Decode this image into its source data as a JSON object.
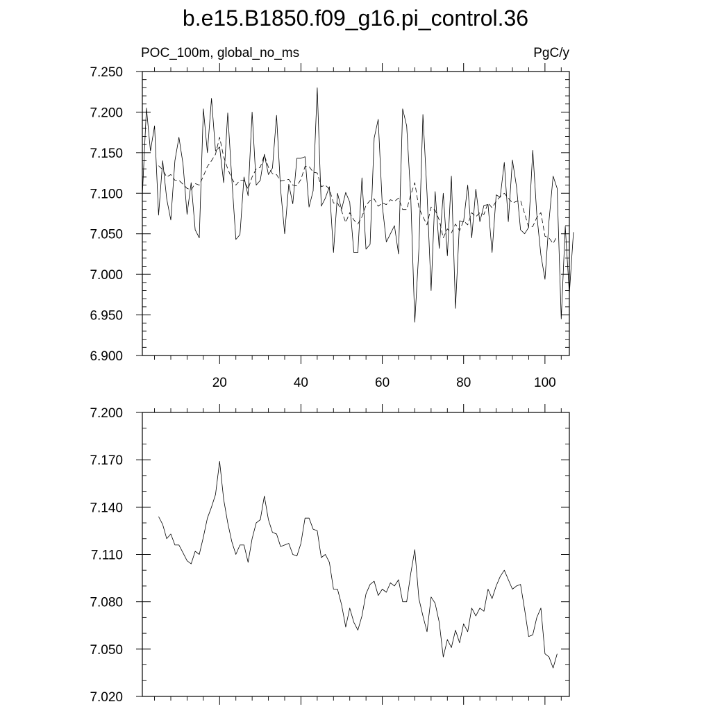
{
  "title": "b.e15.B1850.f09_g16.pi_control.36",
  "chart_data": [
    {
      "type": "line",
      "title": "b.e15.B1850.f09_g16.pi_control.36",
      "left_label": "POC_100m, global_no_ms",
      "right_label": "PgC/y",
      "xlim": [
        1,
        106
      ],
      "ylim": [
        6.9,
        7.25
      ],
      "x_ticks": [
        20,
        40,
        60,
        80,
        100
      ],
      "y_ticks": [
        "6.900",
        "6.950",
        "7.000",
        "7.050",
        "7.100",
        "7.150",
        "7.200",
        "7.250"
      ],
      "series": [
        {
          "style": "solid",
          "x_start": 1,
          "values": [
            7.097,
            7.205,
            7.152,
            7.183,
            7.073,
            7.14,
            7.093,
            7.067,
            7.14,
            7.169,
            7.136,
            7.074,
            7.113,
            7.055,
            7.045,
            7.204,
            7.15,
            7.217,
            7.152,
            7.157,
            7.113,
            7.199,
            7.117,
            7.043,
            7.049,
            7.12,
            7.097,
            7.2,
            7.11,
            7.116,
            7.148,
            7.123,
            7.131,
            7.196,
            7.105,
            7.05,
            7.111,
            7.087,
            7.143,
            7.143,
            7.145,
            7.083,
            7.103,
            7.23,
            7.084,
            7.094,
            7.108,
            7.027,
            7.1,
            7.08,
            7.101,
            7.089,
            7.027,
            7.027,
            7.119,
            7.031,
            7.037,
            7.168,
            7.191,
            7.085,
            7.04,
            7.05,
            7.06,
            7.025,
            7.204,
            7.183,
            7.095,
            6.941,
            7.031,
            7.197,
            7.1,
            6.98,
            7.102,
            7.032,
            7.1,
            7.023,
            7.121,
            6.958,
            7.066,
            7.065,
            7.11,
            7.045,
            7.105,
            7.065,
            7.085,
            7.086,
            7.027,
            7.098,
            7.095,
            7.138,
            7.065,
            7.141,
            7.108,
            7.055,
            7.05,
            7.058,
            7.153,
            7.074,
            7.024,
            6.994,
            7.066,
            7.121,
            7.106,
            6.945,
            7.059,
            6.976,
            7.052
          ]
        },
        {
          "style": "dashed",
          "x_start": 5,
          "values": [
            7.134,
            7.129,
            7.12,
            7.123,
            7.116,
            7.116,
            7.111,
            7.106,
            7.104,
            7.112,
            7.11,
            7.121,
            7.133,
            7.14,
            7.148,
            7.169,
            7.145,
            7.13,
            7.118,
            7.11,
            7.116,
            7.116,
            7.105,
            7.12,
            7.13,
            7.132,
            7.147,
            7.132,
            7.124,
            7.123,
            7.115,
            7.116,
            7.117,
            7.11,
            7.109,
            7.117,
            7.133,
            7.133,
            7.126,
            7.125,
            7.108,
            7.11,
            7.105,
            7.088,
            7.088,
            7.078,
            7.064,
            7.076,
            7.067,
            7.062,
            7.071,
            7.085,
            7.091,
            7.093,
            7.084,
            7.088,
            7.086,
            7.092,
            7.09,
            7.094,
            7.08,
            7.08,
            7.098,
            7.113,
            7.082,
            7.071,
            7.061,
            7.083,
            7.079,
            7.067,
            7.045,
            7.056,
            7.051,
            7.062,
            7.054,
            7.066,
            7.061,
            7.076,
            7.071,
            7.076,
            7.074,
            7.088,
            7.082,
            7.09,
            7.096,
            7.1,
            7.094,
            7.088,
            7.09,
            7.091,
            7.075,
            7.058,
            7.059,
            7.07,
            7.076,
            7.047,
            7.045,
            7.038,
            7.047
          ]
        }
      ]
    },
    {
      "type": "line",
      "xlim": [
        1,
        106
      ],
      "ylim": [
        7.02,
        7.2
      ],
      "x_ticks": [
        20,
        40,
        60,
        80,
        100
      ],
      "y_ticks": [
        "7.020",
        "7.050",
        "7.080",
        "7.110",
        "7.140",
        "7.170",
        "7.200"
      ],
      "series": [
        {
          "style": "solid",
          "x_start": 5,
          "values": [
            7.134,
            7.129,
            7.12,
            7.123,
            7.116,
            7.116,
            7.111,
            7.106,
            7.104,
            7.112,
            7.11,
            7.121,
            7.133,
            7.14,
            7.148,
            7.169,
            7.145,
            7.13,
            7.118,
            7.11,
            7.116,
            7.116,
            7.105,
            7.12,
            7.13,
            7.132,
            7.147,
            7.132,
            7.124,
            7.123,
            7.115,
            7.116,
            7.117,
            7.11,
            7.109,
            7.117,
            7.133,
            7.133,
            7.126,
            7.125,
            7.108,
            7.11,
            7.105,
            7.088,
            7.088,
            7.078,
            7.064,
            7.076,
            7.067,
            7.062,
            7.071,
            7.085,
            7.091,
            7.093,
            7.084,
            7.088,
            7.086,
            7.092,
            7.09,
            7.094,
            7.08,
            7.08,
            7.098,
            7.113,
            7.082,
            7.071,
            7.061,
            7.083,
            7.079,
            7.067,
            7.045,
            7.056,
            7.051,
            7.062,
            7.054,
            7.066,
            7.061,
            7.076,
            7.071,
            7.076,
            7.074,
            7.088,
            7.082,
            7.09,
            7.096,
            7.1,
            7.094,
            7.088,
            7.09,
            7.091,
            7.075,
            7.058,
            7.059,
            7.07,
            7.076,
            7.047,
            7.045,
            7.038,
            7.047
          ]
        }
      ]
    }
  ]
}
